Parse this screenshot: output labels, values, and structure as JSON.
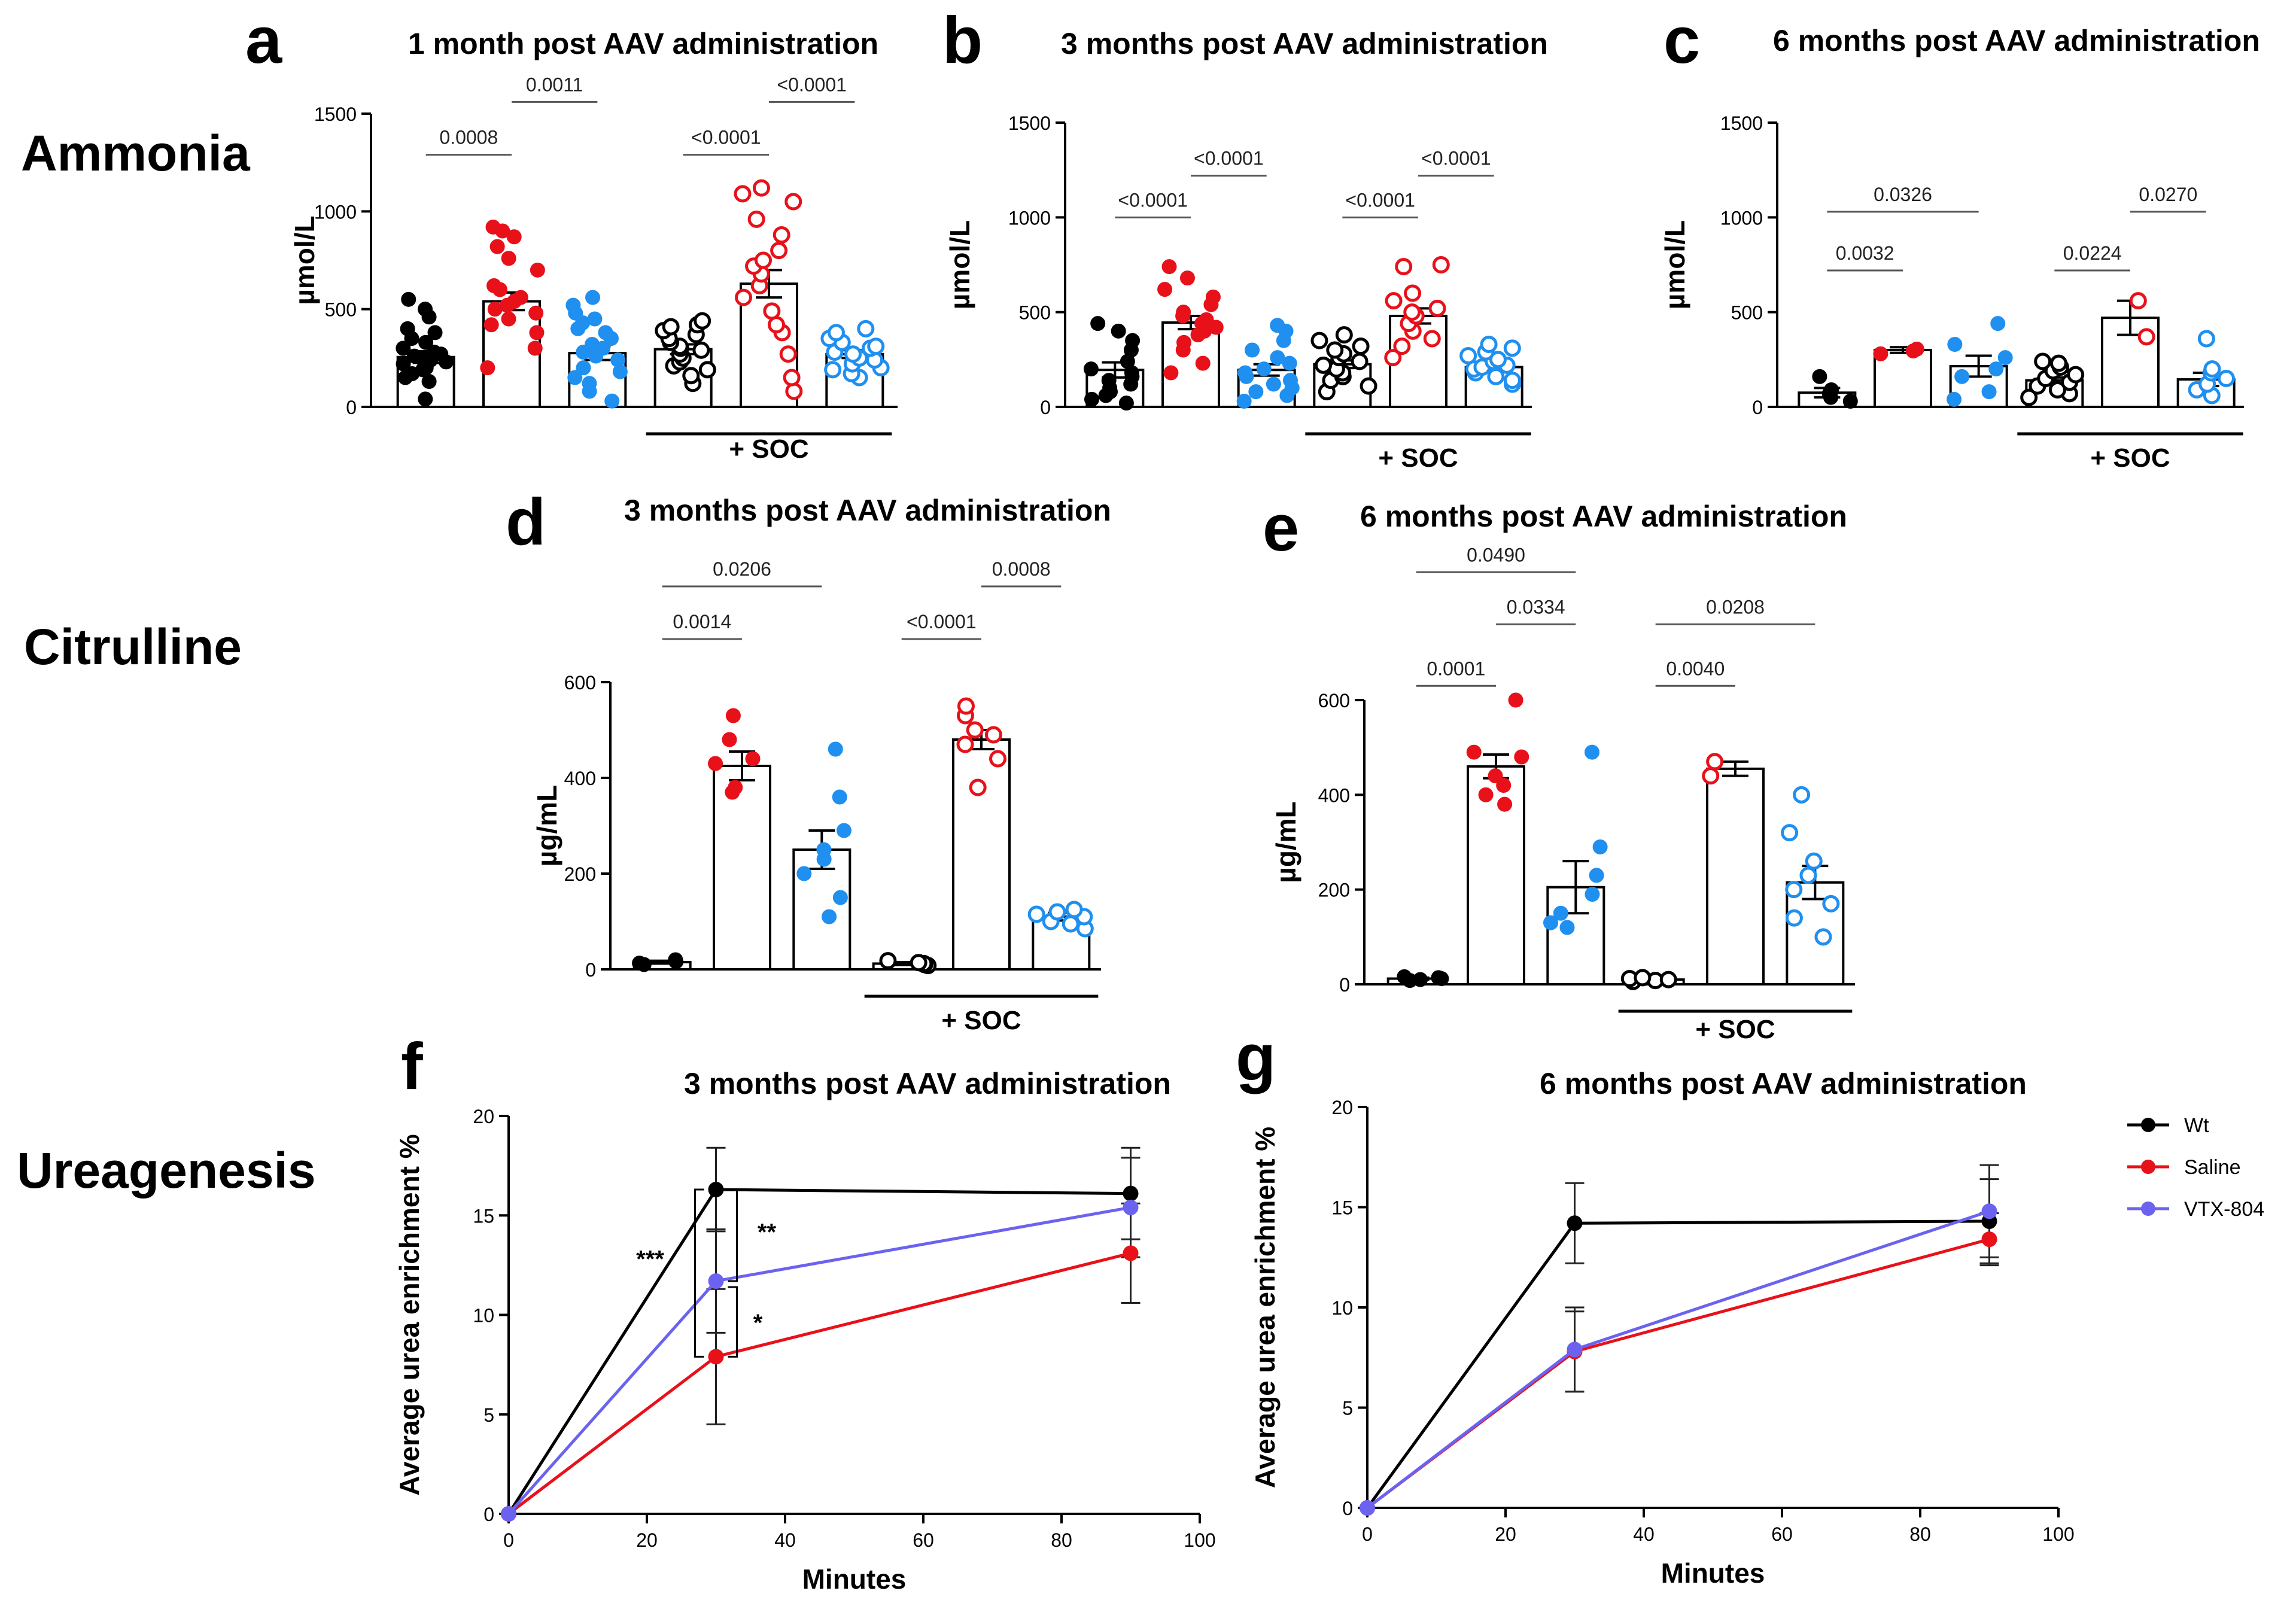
{
  "row_labels": [
    "Ammonia",
    "Citrulline",
    "Ureagenesis"
  ],
  "colors": {
    "wt": "#000000",
    "saline": "#e8111a",
    "vtx": "#1f8ff0",
    "vtx_line": "#6b63f0"
  },
  "chart_data": [
    {
      "id": "a",
      "panel_letter": "a",
      "type": "bar",
      "title": "1 month post AAV administration",
      "ylabel": "µmol/L",
      "ylim": [
        0,
        1500
      ],
      "yticks": [
        0,
        500,
        1000,
        1500
      ],
      "soc_label": "+ SOC",
      "groups": [
        {
          "name": "Wt",
          "color": "black",
          "filled": true,
          "mean": 255,
          "sem": 30,
          "points": [
            40,
            130,
            150,
            170,
            190,
            200,
            220,
            230,
            240,
            250,
            260,
            270,
            280,
            300,
            330,
            350,
            380,
            400,
            460,
            500,
            550
          ]
        },
        {
          "name": "Saline",
          "color": "red",
          "filled": true,
          "mean": 540,
          "sem": 45,
          "points": [
            200,
            300,
            380,
            420,
            450,
            480,
            500,
            520,
            540,
            560,
            600,
            620,
            700,
            760,
            820,
            870,
            900,
            920
          ]
        },
        {
          "name": "VTX-804",
          "color": "blue",
          "filled": true,
          "mean": 275,
          "sem": 35,
          "points": [
            30,
            80,
            120,
            150,
            180,
            200,
            240,
            260,
            280,
            300,
            320,
            350,
            380,
            400,
            430,
            450,
            480,
            520,
            560
          ]
        },
        {
          "name": "Wt + SOC",
          "color": "black",
          "filled": false,
          "mean": 295,
          "sem": 25,
          "points": [
            120,
            160,
            190,
            210,
            230,
            250,
            270,
            290,
            300,
            310,
            330,
            350,
            370,
            390,
            410,
            420,
            440
          ]
        },
        {
          "name": "Saline + SOC",
          "color": "red",
          "filled": false,
          "mean": 630,
          "sem": 70,
          "points": [
            80,
            150,
            270,
            380,
            420,
            490,
            560,
            620,
            680,
            720,
            750,
            800,
            880,
            960,
            1050,
            1090,
            1120
          ]
        },
        {
          "name": "VTX-804 + SOC",
          "color": "blue",
          "filled": false,
          "mean": 270,
          "sem": 20,
          "points": [
            150,
            170,
            190,
            200,
            220,
            240,
            250,
            270,
            280,
            300,
            310,
            330,
            350,
            380,
            400
          ]
        }
      ],
      "comparisons": [
        {
          "from": 0,
          "to": 1,
          "label": "0.0008",
          "y": 1290
        },
        {
          "from": 1,
          "to": 2,
          "label": "0.0011",
          "y": 1560
        },
        {
          "from": 3,
          "to": 4,
          "label": "<0.0001",
          "y": 1290
        },
        {
          "from": 4,
          "to": 5,
          "label": "<0.0001",
          "y": 1560
        }
      ]
    },
    {
      "id": "b",
      "panel_letter": "b",
      "type": "bar",
      "title": "3 months post AAV administration",
      "ylabel": "µmol/L",
      "ylim": [
        0,
        1500
      ],
      "yticks": [
        0,
        500,
        1000,
        1500
      ],
      "soc_label": "+ SOC",
      "groups": [
        {
          "name": "Wt",
          "color": "black",
          "filled": true,
          "mean": 195,
          "sem": 40,
          "points": [
            20,
            40,
            60,
            80,
            100,
            120,
            140,
            160,
            180,
            200,
            240,
            300,
            350,
            400,
            440
          ]
        },
        {
          "name": "Saline",
          "color": "red",
          "filled": true,
          "mean": 445,
          "sem": 35,
          "points": [
            180,
            230,
            300,
            340,
            380,
            400,
            420,
            440,
            460,
            480,
            500,
            540,
            580,
            620,
            680,
            740
          ]
        },
        {
          "name": "VTX-804",
          "color": "blue",
          "filled": true,
          "mean": 195,
          "sem": 30,
          "points": [
            30,
            60,
            80,
            100,
            120,
            140,
            160,
            180,
            200,
            230,
            260,
            300,
            350,
            400,
            430
          ]
        },
        {
          "name": "Wt + SOC",
          "color": "black",
          "filled": false,
          "mean": 225,
          "sem": 20,
          "points": [
            80,
            110,
            140,
            160,
            180,
            200,
            220,
            240,
            260,
            280,
            300,
            320,
            350,
            380
          ]
        },
        {
          "name": "Saline + SOC",
          "color": "red",
          "filled": false,
          "mean": 480,
          "sem": 40,
          "points": [
            260,
            320,
            360,
            400,
            440,
            480,
            500,
            520,
            560,
            600,
            740,
            750
          ]
        },
        {
          "name": "VTX-804 + SOC",
          "color": "blue",
          "filled": false,
          "mean": 210,
          "sem": 15,
          "points": [
            120,
            140,
            160,
            180,
            200,
            210,
            220,
            240,
            250,
            270,
            290,
            310,
            330
          ]
        }
      ],
      "comparisons": [
        {
          "from": 0,
          "to": 1,
          "label": "<0.0001",
          "y": 1000
        },
        {
          "from": 1,
          "to": 2,
          "label": "<0.0001",
          "y": 1220
        },
        {
          "from": 3,
          "to": 4,
          "label": "<0.0001",
          "y": 1000
        },
        {
          "from": 4,
          "to": 5,
          "label": "<0.0001",
          "y": 1220
        }
      ]
    },
    {
      "id": "c",
      "panel_letter": "c",
      "type": "bar",
      "title": "6 months post AAV administration",
      "ylabel": "µmol/L",
      "ylim": [
        0,
        1500
      ],
      "yticks": [
        0,
        500,
        1000,
        1500
      ],
      "soc_label": "+ SOC",
      "groups": [
        {
          "name": "Wt",
          "color": "black",
          "filled": true,
          "mean": 75,
          "sem": 25,
          "points": [
            30,
            50,
            70,
            90,
            160
          ]
        },
        {
          "name": "Saline",
          "color": "red",
          "filled": true,
          "mean": 300,
          "sem": 15,
          "points": [
            280,
            295,
            305
          ]
        },
        {
          "name": "VTX-804",
          "color": "blue",
          "filled": true,
          "mean": 215,
          "sem": 55,
          "points": [
            40,
            80,
            160,
            200,
            260,
            330,
            440
          ]
        },
        {
          "name": "Wt + SOC",
          "color": "black",
          "filled": false,
          "mean": 140,
          "sem": 15,
          "points": [
            50,
            70,
            90,
            110,
            130,
            150,
            170,
            190,
            210,
            230,
            240
          ]
        },
        {
          "name": "Saline + SOC",
          "color": "red",
          "filled": false,
          "mean": 470,
          "sem": 90,
          "points": [
            370,
            560
          ]
        },
        {
          "name": "VTX-804 + SOC",
          "color": "blue",
          "filled": false,
          "mean": 145,
          "sem": 35,
          "points": [
            60,
            90,
            120,
            150,
            180,
            200,
            360
          ]
        }
      ],
      "comparisons": [
        {
          "from": 0,
          "to": 1,
          "label": "0.0032",
          "y": 720
        },
        {
          "from": 0,
          "to": 2,
          "label": "0.0326",
          "y": 1030
        },
        {
          "from": 3,
          "to": 4,
          "label": "0.0224",
          "y": 720
        },
        {
          "from": 4,
          "to": 5,
          "label": "0.0270",
          "y": 1030
        }
      ]
    },
    {
      "id": "d",
      "panel_letter": "d",
      "type": "bar",
      "title": "3 months post AAV administration",
      "ylabel": "µg/mL",
      "ylim": [
        0,
        600
      ],
      "yticks": [
        0,
        200,
        400,
        600
      ],
      "soc_label": "+ SOC",
      "groups": [
        {
          "name": "Wt",
          "color": "black",
          "filled": true,
          "mean": 15,
          "sem": 3,
          "points": [
            10,
            13,
            16,
            20
          ]
        },
        {
          "name": "Saline",
          "color": "red",
          "filled": true,
          "mean": 425,
          "sem": 30,
          "points": [
            370,
            380,
            430,
            440,
            480,
            530
          ]
        },
        {
          "name": "VTX-804",
          "color": "blue",
          "filled": true,
          "mean": 250,
          "sem": 40,
          "points": [
            110,
            150,
            200,
            230,
            250,
            290,
            360,
            460
          ]
        },
        {
          "name": "Wt + SOC",
          "color": "black",
          "filled": false,
          "mean": 12,
          "sem": 3,
          "points": [
            8,
            10,
            12,
            14,
            18
          ]
        },
        {
          "name": "Saline + SOC",
          "color": "red",
          "filled": false,
          "mean": 480,
          "sem": 20,
          "points": [
            380,
            440,
            470,
            490,
            500,
            530,
            550
          ]
        },
        {
          "name": "VTX-804 + SOC",
          "color": "blue",
          "filled": false,
          "mean": 110,
          "sem": 8,
          "points": [
            85,
            95,
            100,
            110,
            115,
            120,
            125
          ]
        }
      ],
      "comparisons": [
        {
          "from": 0,
          "to": 1,
          "label": "0.0014",
          "y": 690
        },
        {
          "from": 0,
          "to": 2,
          "label": "0.0206",
          "y": 800
        },
        {
          "from": 3,
          "to": 4,
          "label": "<0.0001",
          "y": 690
        },
        {
          "from": 4,
          "to": 5,
          "label": "0.0008",
          "y": 800
        }
      ]
    },
    {
      "id": "e",
      "panel_letter": "e",
      "type": "bar",
      "title": "6 months post AAV administration",
      "ylabel": "µg/mL",
      "ylim": [
        0,
        600
      ],
      "yticks": [
        0,
        200,
        400,
        600
      ],
      "soc_label": "+ SOC",
      "groups": [
        {
          "name": "Wt",
          "color": "black",
          "filled": true,
          "mean": 12,
          "sem": 2,
          "points": [
            8,
            10,
            12,
            14,
            16
          ]
        },
        {
          "name": "Saline",
          "color": "red",
          "filled": true,
          "mean": 460,
          "sem": 25,
          "points": [
            380,
            400,
            420,
            440,
            480,
            490,
            600
          ]
        },
        {
          "name": "VTX-804",
          "color": "blue",
          "filled": true,
          "mean": 205,
          "sem": 55,
          "points": [
            120,
            130,
            150,
            190,
            230,
            290,
            490
          ]
        },
        {
          "name": "Wt + SOC",
          "color": "black",
          "filled": false,
          "mean": 10,
          "sem": 2,
          "points": [
            6,
            8,
            10,
            12,
            14
          ]
        },
        {
          "name": "Saline + SOC",
          "color": "red",
          "filled": false,
          "mean": 455,
          "sem": 15,
          "points": [
            440,
            470
          ]
        },
        {
          "name": "VTX-804 + SOC",
          "color": "blue",
          "filled": false,
          "mean": 215,
          "sem": 35,
          "points": [
            100,
            140,
            170,
            200,
            230,
            260,
            320,
            400
          ]
        }
      ],
      "comparisons": [
        {
          "from": 0,
          "to": 1,
          "label": "0.0001",
          "y": 630
        },
        {
          "from": 1,
          "to": 2,
          "label": "0.0334",
          "y": 760
        },
        {
          "from": 0,
          "to": 2,
          "label": "0.0490",
          "y": 870
        },
        {
          "from": 3,
          "to": 4,
          "label": "0.0040",
          "y": 630
        },
        {
          "from": 3,
          "to": 5,
          "label": "0.0208",
          "y": 760
        }
      ]
    },
    {
      "id": "f",
      "panel_letter": "f",
      "type": "line",
      "title": "3 months post AAV administration",
      "xlabel": "Minutes",
      "ylabel": "Average urea enrichment %",
      "xlim": [
        0,
        100
      ],
      "ylim": [
        0,
        20
      ],
      "xticks": [
        0,
        20,
        40,
        60,
        80,
        100
      ],
      "yticks": [
        0,
        5,
        10,
        15,
        20
      ],
      "x": [
        0,
        30,
        90
      ],
      "series": [
        {
          "name": "Wt",
          "color": "black",
          "values": [
            0,
            16.3,
            16.1
          ],
          "err": [
            0,
            2.1,
            2.3
          ]
        },
        {
          "name": "Saline",
          "color": "red",
          "values": [
            0,
            7.9,
            13.1
          ],
          "err": [
            0,
            3.4,
            2.5
          ]
        },
        {
          "name": "VTX-804",
          "color": "purple",
          "values": [
            0,
            11.7,
            15.4
          ],
          "err": [
            0,
            2.6,
            2.5
          ]
        }
      ],
      "significance": [
        "***",
        "**",
        "*"
      ]
    },
    {
      "id": "g",
      "panel_letter": "g",
      "type": "line",
      "title": "6 months post AAV administration",
      "xlabel": "Minutes",
      "ylabel": "Average urea enrichment %",
      "xlim": [
        0,
        100
      ],
      "ylim": [
        0,
        20
      ],
      "xticks": [
        0,
        20,
        40,
        60,
        80,
        100
      ],
      "yticks": [
        0,
        5,
        10,
        15,
        20
      ],
      "x": [
        0,
        30,
        90
      ],
      "series": [
        {
          "name": "Wt",
          "color": "black",
          "values": [
            0,
            14.2,
            14.3
          ],
          "err": [
            0,
            2.0,
            2.1
          ]
        },
        {
          "name": "Saline",
          "color": "red",
          "values": [
            0,
            7.8,
            13.4
          ],
          "err": [
            0,
            2.0,
            1.3
          ]
        },
        {
          "name": "VTX-804",
          "color": "purple",
          "values": [
            0,
            7.9,
            14.8
          ],
          "err": [
            0,
            2.1,
            2.3
          ]
        }
      ],
      "legend": [
        "Wt",
        "Saline",
        "VTX-804"
      ]
    }
  ]
}
